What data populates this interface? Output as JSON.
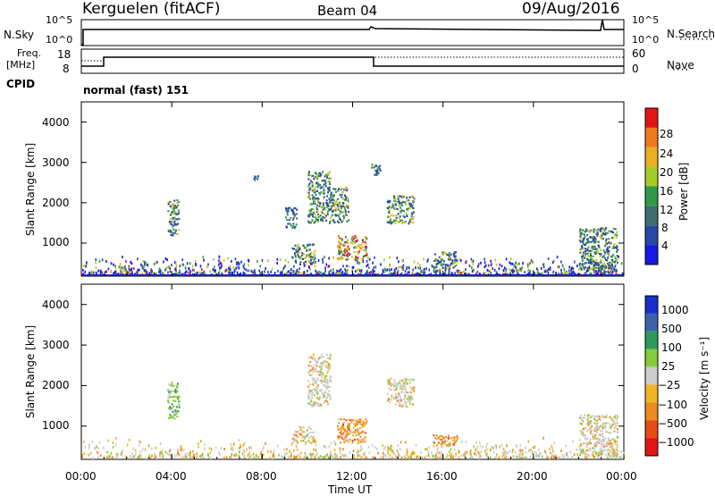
{
  "header": {
    "station": "Kerguelen (fitACF)",
    "beam": "Beam 04",
    "date": "09/Aug/2016"
  },
  "panels": {
    "nsky": {
      "label": "N.Sky",
      "tick_top": "10^5",
      "tick_bottom": "10^0",
      "right_label": "N.Search",
      "right_tick_top": "10^5",
      "right_tick_bottom": "10^0"
    },
    "freq": {
      "label_line1": "Freq.",
      "label_line2": "[MHz]",
      "tick_top": "18",
      "tick_bottom": "8",
      "right_label": "Nave",
      "right_tick_top": "60",
      "right_tick_bottom": "0"
    },
    "cpid": {
      "label": "CPID",
      "value": "normal (fast) 151"
    }
  },
  "chart_data": [
    {
      "type": "heatmap",
      "title": "",
      "ylabel": "Slant Range [km]",
      "yticks": [
        "1000",
        "2000",
        "3000",
        "4000"
      ],
      "ylim": [
        180,
        4500
      ],
      "colorbar": {
        "label": "Power [dB]",
        "ticks": [
          "4",
          "8",
          "12",
          "16",
          "20",
          "24",
          "28"
        ]
      },
      "echo_regions": [
        {
          "t": [
            3.8,
            4.3
          ],
          "range": [
            1200,
            2100
          ],
          "level": "medium"
        },
        {
          "t": [
            7.6,
            7.8
          ],
          "range": [
            2500,
            2700
          ],
          "level": "low"
        },
        {
          "t": [
            9.0,
            9.5
          ],
          "range": [
            1400,
            1900
          ],
          "level": "low"
        },
        {
          "t": [
            9.3,
            10.3
          ],
          "range": [
            500,
            1000
          ],
          "level": "medium"
        },
        {
          "t": [
            10.0,
            11.0
          ],
          "range": [
            1500,
            2800
          ],
          "level": "medium"
        },
        {
          "t": [
            11.0,
            11.8
          ],
          "range": [
            1500,
            2400
          ],
          "level": "medium"
        },
        {
          "t": [
            11.3,
            12.6
          ],
          "range": [
            600,
            1200
          ],
          "level": "high"
        },
        {
          "t": [
            12.8,
            13.2
          ],
          "range": [
            2700,
            3000
          ],
          "level": "low"
        },
        {
          "t": [
            13.5,
            14.7
          ],
          "range": [
            1500,
            2200
          ],
          "level": "medium"
        },
        {
          "t": [
            15.5,
            16.6
          ],
          "range": [
            400,
            800
          ],
          "level": "medium"
        },
        {
          "t": [
            22.0,
            23.7
          ],
          "range": [
            300,
            1400
          ],
          "level": "medium"
        }
      ]
    },
    {
      "type": "heatmap",
      "title": "",
      "xlabel": "Time UT",
      "ylabel": "Slant Range [km]",
      "xticks": [
        "00:00",
        "04:00",
        "08:00",
        "12:00",
        "16:00",
        "20:00",
        "00:00"
      ],
      "yticks": [
        "1000",
        "2000",
        "3000",
        "4000"
      ],
      "ylim": [
        180,
        4500
      ],
      "colorbar": {
        "label": "Velocity [m s⁻¹]",
        "ticks": [
          "1000",
          "500",
          "100",
          "25",
          "−25",
          "−100",
          "−500",
          "−1000"
        ]
      },
      "echo_regions": [
        {
          "t": [
            3.8,
            4.3
          ],
          "range": [
            1200,
            2100
          ],
          "level": "positive"
        },
        {
          "t": [
            9.3,
            10.3
          ],
          "range": [
            600,
            1000
          ],
          "level": "near-zero"
        },
        {
          "t": [
            10.0,
            11.0
          ],
          "range": [
            1500,
            2800
          ],
          "level": "near-zero"
        },
        {
          "t": [
            11.3,
            12.6
          ],
          "range": [
            600,
            1200
          ],
          "level": "negative"
        },
        {
          "t": [
            13.5,
            14.7
          ],
          "range": [
            1500,
            2200
          ],
          "level": "near-zero"
        },
        {
          "t": [
            15.5,
            16.6
          ],
          "range": [
            500,
            800
          ],
          "level": "negative"
        },
        {
          "t": [
            22.0,
            23.7
          ],
          "range": [
            300,
            1300
          ],
          "level": "near-zero"
        }
      ]
    }
  ],
  "colors": {
    "power": [
      "#1818e6",
      "#2748a8",
      "#3e6e6e",
      "#2f9a4a",
      "#a6cc26",
      "#e8b020",
      "#ef7a1c",
      "#e21616"
    ],
    "velocity": [
      "#1a2ecc",
      "#3a64a8",
      "#2e9a5a",
      "#84cc3c",
      "#cccccc",
      "#f0b424",
      "#ee8a1e",
      "#e84a18",
      "#e21616"
    ]
  }
}
